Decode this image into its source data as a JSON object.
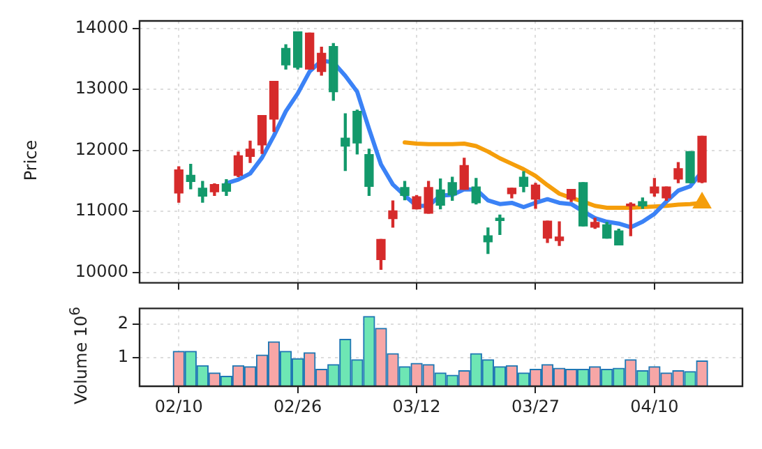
{
  "chart_data": [
    {
      "type": "candlestick",
      "ylabel": "Price",
      "tick_labels": "y",
      "grid": true,
      "ylim": [
        9830,
        14120
      ],
      "yticks": [
        10000,
        11000,
        12000,
        13000,
        14000
      ],
      "ohlc": [
        [
          11680,
          11730,
          11150,
          11300
        ],
        [
          11490,
          11770,
          11370,
          11590
        ],
        [
          11250,
          11490,
          11150,
          11380
        ],
        [
          11440,
          11450,
          11260,
          11320
        ],
        [
          11330,
          11520,
          11260,
          11450
        ],
        [
          11910,
          11970,
          11570,
          11590
        ],
        [
          12020,
          12150,
          11800,
          11900
        ],
        [
          12570,
          12570,
          11950,
          12090
        ],
        [
          13130,
          13130,
          12310,
          12510
        ],
        [
          13400,
          13730,
          13330,
          13670
        ],
        [
          13360,
          13940,
          13330,
          13940
        ],
        [
          13920,
          13920,
          13330,
          13330
        ],
        [
          13590,
          13690,
          13230,
          13290
        ],
        [
          12960,
          13750,
          12820,
          13700
        ],
        [
          12070,
          12600,
          11670,
          12200
        ],
        [
          12120,
          12660,
          11940,
          12640
        ],
        [
          11410,
          12020,
          11260,
          11930
        ],
        [
          10540,
          10540,
          10050,
          10210
        ],
        [
          11010,
          11170,
          10740,
          10880
        ],
        [
          11260,
          11490,
          11190,
          11390
        ],
        [
          11240,
          11260,
          11040,
          11040
        ],
        [
          11390,
          11490,
          10970,
          10970
        ],
        [
          11100,
          11530,
          11040,
          11350
        ],
        [
          11270,
          11560,
          11180,
          11470
        ],
        [
          11750,
          11870,
          11360,
          11360
        ],
        [
          11140,
          11540,
          11120,
          11400
        ],
        [
          10500,
          10730,
          10310,
          10600
        ],
        [
          10850,
          10940,
          10620,
          10890
        ],
        [
          11380,
          11380,
          11220,
          11290
        ],
        [
          11410,
          11650,
          11320,
          11560
        ],
        [
          11430,
          11460,
          11050,
          11200
        ],
        [
          10840,
          10840,
          10490,
          10560
        ],
        [
          10580,
          10830,
          10440,
          10520
        ],
        [
          11360,
          11360,
          11160,
          11200
        ],
        [
          10760,
          11470,
          10760,
          11470
        ],
        [
          10820,
          10890,
          10720,
          10740
        ],
        [
          10560,
          10820,
          10560,
          10780
        ],
        [
          10450,
          10710,
          10450,
          10680
        ],
        [
          11120,
          11140,
          10600,
          11090
        ],
        [
          11090,
          11220,
          11050,
          11160
        ],
        [
          11400,
          11540,
          11250,
          11300
        ],
        [
          11400,
          11400,
          11180,
          11220
        ],
        [
          11700,
          11800,
          11470,
          11530
        ],
        [
          11470,
          11980,
          11470,
          11980
        ],
        [
          12230,
          12230,
          11470,
          11480
        ]
      ],
      "colors": [
        "#d62b2b",
        "#13996b",
        "#13996b",
        "#d62b2b",
        "#13996b",
        "#d62b2b",
        "#d62b2b",
        "#d62b2b",
        "#d62b2b",
        "#13996b",
        "#13996b",
        "#d62b2b",
        "#d62b2b",
        "#13996b",
        "#13996b",
        "#13996b",
        "#13996b",
        "#d62b2b",
        "#d62b2b",
        "#13996b",
        "#d62b2b",
        "#d62b2b",
        "#13996b",
        "#13996b",
        "#d62b2b",
        "#13996b",
        "#13996b",
        "#13996b",
        "#d62b2b",
        "#13996b",
        "#d62b2b",
        "#d62b2b",
        "#d62b2b",
        "#d62b2b",
        "#13996b",
        "#d62b2b",
        "#13996b",
        "#13996b",
        "#d62b2b",
        "#13996b",
        "#d62b2b",
        "#d62b2b",
        "#d62b2b",
        "#13996b",
        "#d62b2b"
      ],
      "series": [
        {
          "type": "line",
          "color": "#3b82f6",
          "values": [
            null,
            null,
            null,
            null,
            11460,
            11520,
            11620,
            11880,
            12240,
            12640,
            12930,
            13290,
            13470,
            13440,
            13220,
            12960,
            12350,
            11770,
            11440,
            11260,
            11090,
            11090,
            11260,
            11270,
            11360,
            11360,
            11180,
            11120,
            11140,
            11070,
            11140,
            11200,
            11140,
            11120,
            11000,
            10890,
            10830,
            10800,
            10740,
            10830,
            10960,
            11160,
            11340,
            11410,
            11650
          ]
        },
        {
          "type": "line",
          "color": "#f59e0b",
          "values": [
            null,
            null,
            null,
            null,
            null,
            null,
            null,
            null,
            null,
            null,
            null,
            null,
            null,
            null,
            null,
            null,
            null,
            null,
            null,
            12130,
            12110,
            12100,
            12100,
            12100,
            12110,
            12070,
            11980,
            11870,
            11780,
            11690,
            11580,
            11430,
            11290,
            11220,
            11160,
            11090,
            11060,
            11060,
            11060,
            11070,
            11080,
            11090,
            11110,
            11120,
            11140
          ]
        },
        {
          "type": "scatter",
          "color": "#f59e0b",
          "marker": "triangle",
          "values": [
            null,
            null,
            null,
            null,
            null,
            null,
            null,
            null,
            null,
            null,
            null,
            null,
            null,
            null,
            null,
            null,
            null,
            null,
            null,
            null,
            null,
            null,
            null,
            null,
            null,
            null,
            null,
            null,
            null,
            null,
            null,
            null,
            null,
            null,
            null,
            null,
            null,
            null,
            null,
            null,
            null,
            null,
            null,
            null,
            11140
          ]
        }
      ]
    },
    {
      "type": "bar",
      "ylabel": "Volume  10$^{6}$",
      "grid": true,
      "categories": [
        "02/10",
        null,
        null,
        null,
        null,
        null,
        null,
        null,
        null,
        null,
        "02/26",
        null,
        null,
        null,
        null,
        null,
        null,
        null,
        null,
        null,
        "03/12",
        null,
        null,
        null,
        null,
        null,
        null,
        null,
        null,
        null,
        "03/27",
        null,
        null,
        null,
        null,
        null,
        null,
        null,
        null,
        null,
        "04/10",
        null,
        null,
        null,
        null
      ],
      "ylim": [
        0.13,
        2.47
      ],
      "yticks": [
        1,
        2
      ],
      "values": [
        1.18,
        1.18,
        0.75,
        0.53,
        0.43,
        0.75,
        0.72,
        1.07,
        1.47,
        1.18,
        0.96,
        1.14,
        0.64,
        0.78,
        1.54,
        0.93,
        2.23,
        1.87,
        1.11,
        0.72,
        0.82,
        0.78,
        0.53,
        0.46,
        0.6,
        1.11,
        0.93,
        0.72,
        0.75,
        0.53,
        0.64,
        0.78,
        0.67,
        0.64,
        0.64,
        0.72,
        0.64,
        0.67,
        0.93,
        0.6,
        0.72,
        0.53,
        0.6,
        0.57,
        0.89
      ],
      "colors": [
        "#f7a6a6",
        "#6ee6b4",
        "#6ee6b4",
        "#f7a6a6",
        "#6ee6b4",
        "#f7a6a6",
        "#f7a6a6",
        "#f7a6a6",
        "#f7a6a6",
        "#6ee6b4",
        "#6ee6b4",
        "#f7a6a6",
        "#f7a6a6",
        "#6ee6b4",
        "#6ee6b4",
        "#6ee6b4",
        "#6ee6b4",
        "#f7a6a6",
        "#f7a6a6",
        "#6ee6b4",
        "#f7a6a6",
        "#f7a6a6",
        "#6ee6b4",
        "#6ee6b4",
        "#f7a6a6",
        "#6ee6b4",
        "#6ee6b4",
        "#6ee6b4",
        "#f7a6a6",
        "#6ee6b4",
        "#f7a6a6",
        "#f7a6a6",
        "#f7a6a6",
        "#f7a6a6",
        "#6ee6b4",
        "#f7a6a6",
        "#6ee6b4",
        "#6ee6b4",
        "#f7a6a6",
        "#6ee6b4",
        "#f7a6a6",
        "#f7a6a6",
        "#f7a6a6",
        "#6ee6b4",
        "#f7a6a6"
      ]
    }
  ]
}
